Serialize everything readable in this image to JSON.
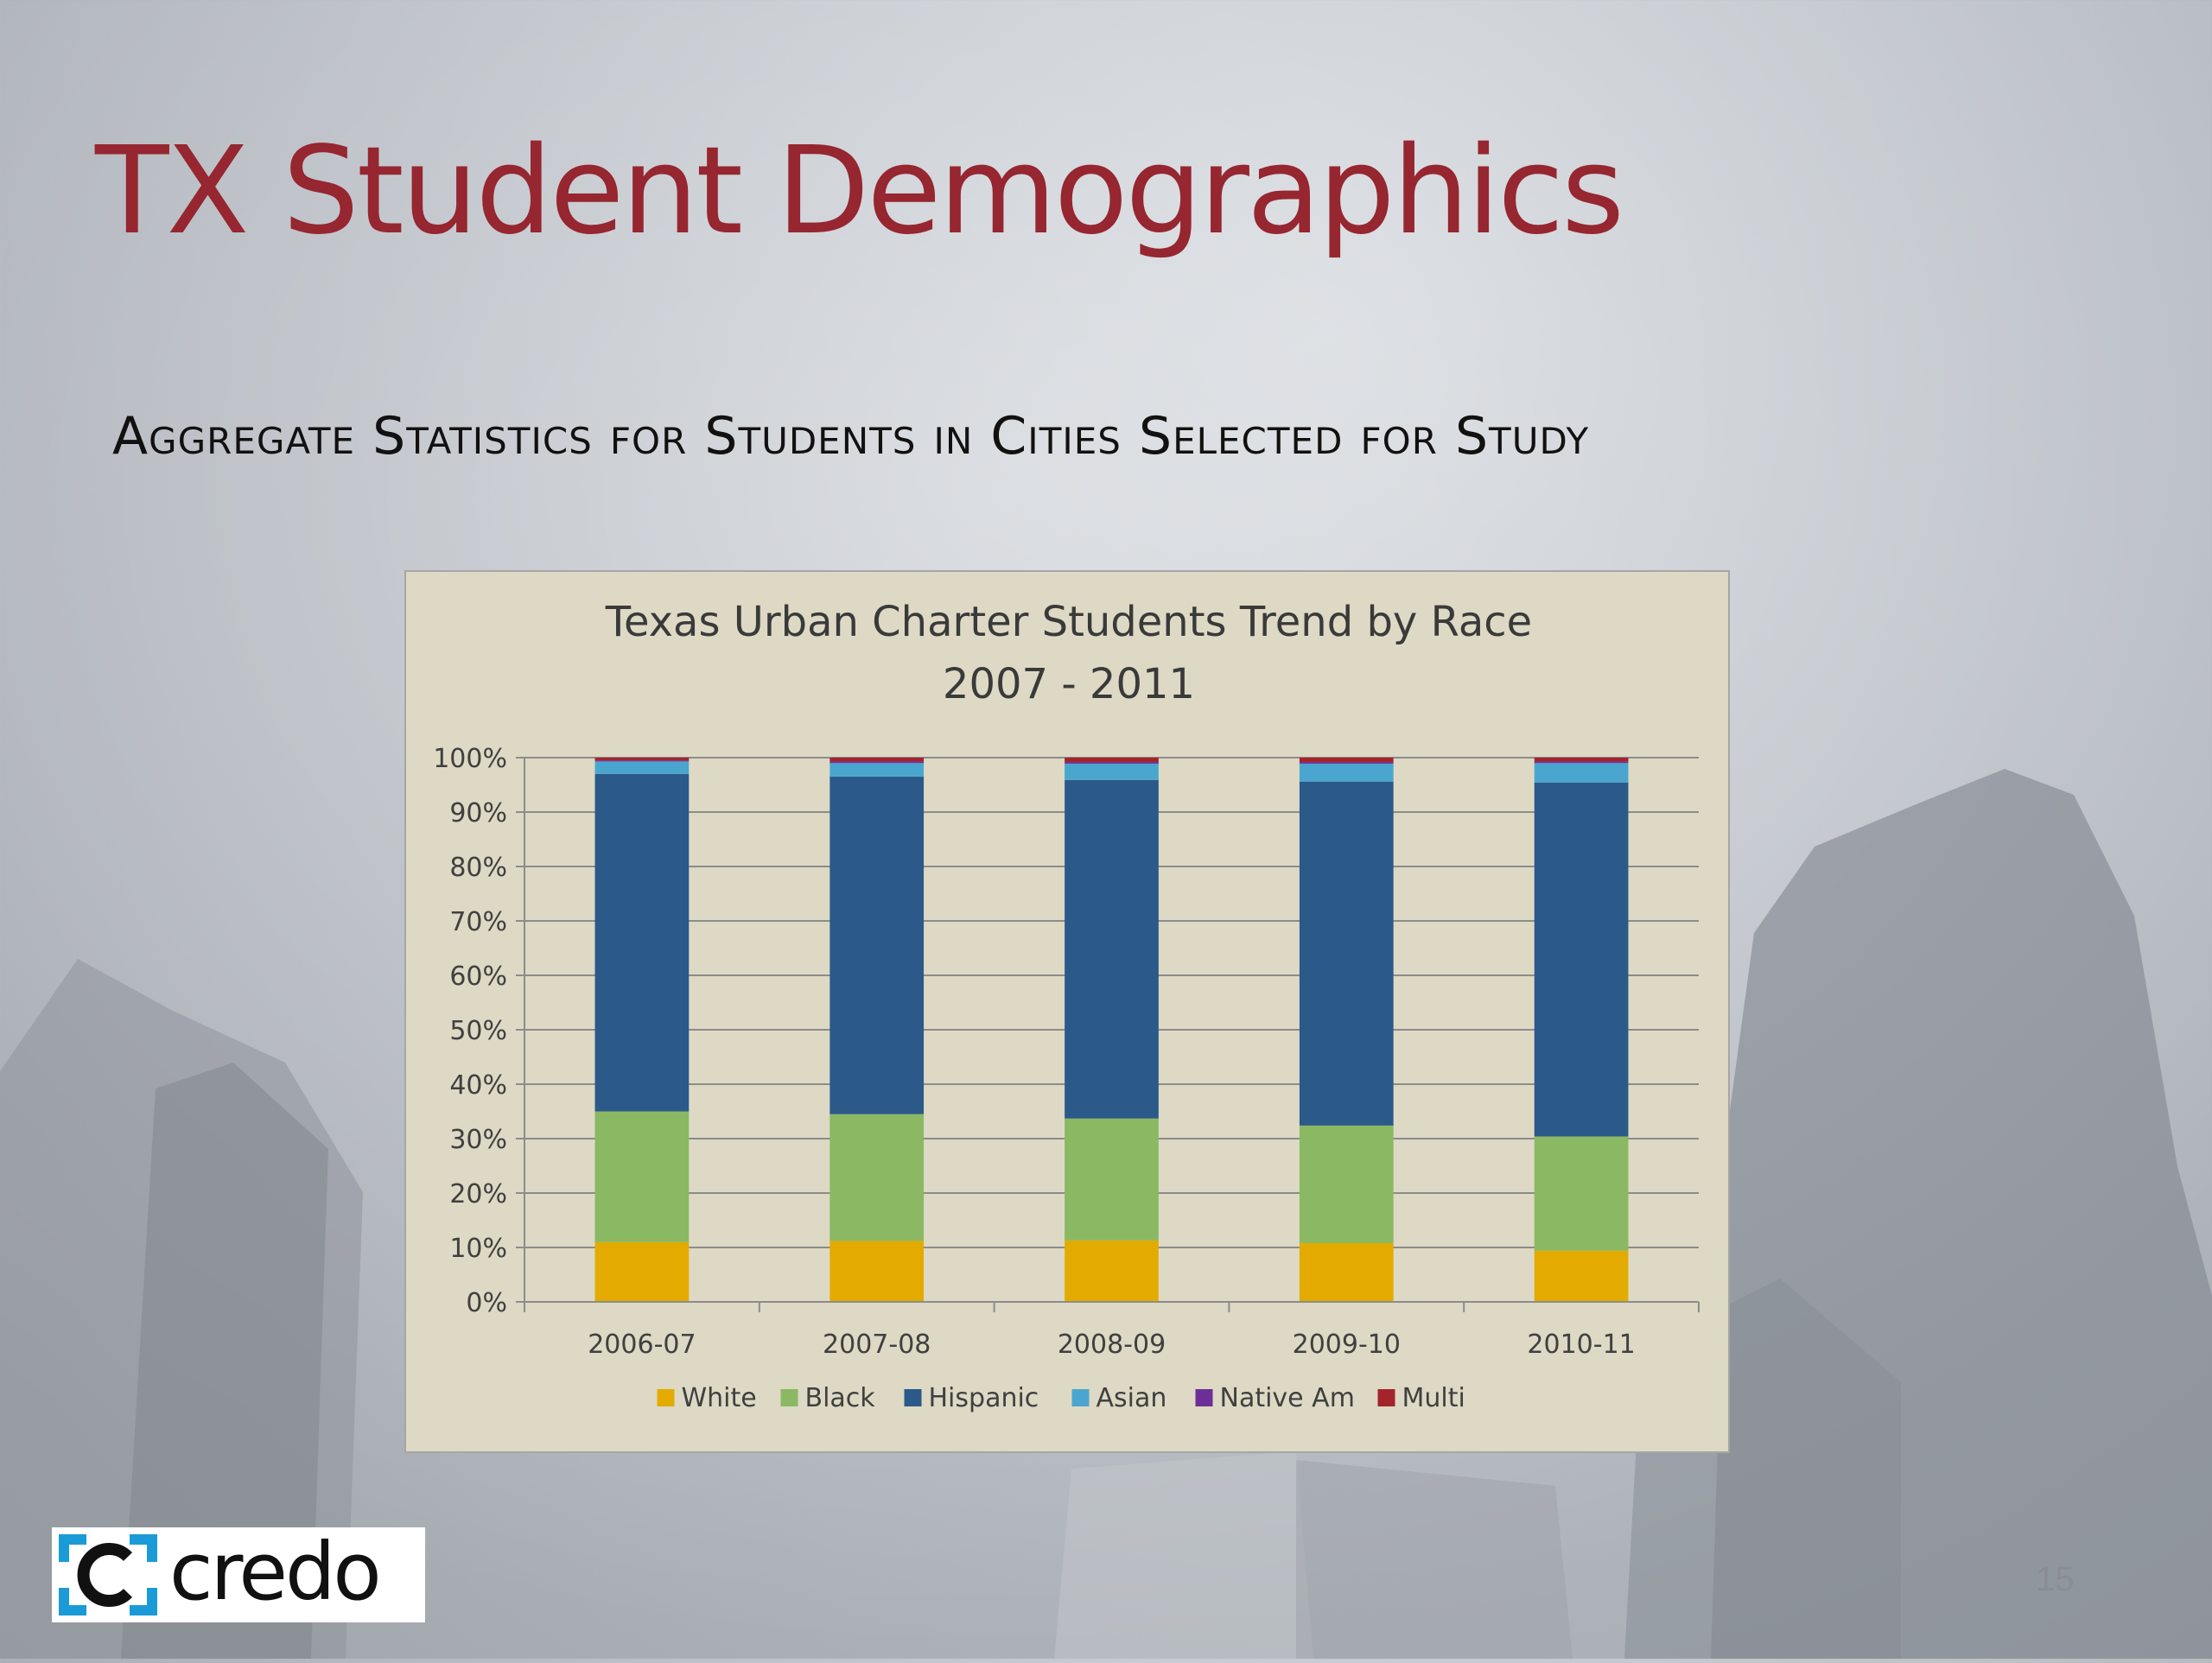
{
  "slide": {
    "title": "TX Student Demographics",
    "subtitle": "Aggregate Statistics for Students in Cities Selected for Study",
    "page_number": "15",
    "logo_text": "credo"
  },
  "colors": {
    "title": "#962630",
    "chart_background": "#ddd9c4",
    "White": "#e3ab00",
    "Black": "#8bb863",
    "Hispanic": "#2b5989",
    "Asian": "#4ba6cf",
    "Native Am": "#6c2f98",
    "Multi": "#a4242b",
    "logo_accent": "#1a9bd7"
  },
  "chart_data": {
    "type": "bar",
    "stacked": true,
    "percent_stacked": true,
    "title_lines": [
      "Texas Urban Charter Students Trend by Race",
      "2007 - 2011"
    ],
    "categories": [
      "2006-07",
      "2007-08",
      "2008-09",
      "2009-10",
      "2010-11"
    ],
    "series": [
      {
        "name": "White",
        "values": [
          11.0,
          11.2,
          11.3,
          10.8,
          9.4
        ]
      },
      {
        "name": "Black",
        "values": [
          24.0,
          23.3,
          22.4,
          21.6,
          21.0
        ]
      },
      {
        "name": "Hispanic",
        "values": [
          62.0,
          62.0,
          62.2,
          63.2,
          65.0
        ]
      },
      {
        "name": "Asian",
        "values": [
          2.3,
          2.5,
          3.0,
          3.3,
          3.6
        ]
      },
      {
        "name": "Native Am",
        "values": [
          0.2,
          0.3,
          0.3,
          0.3,
          0.3
        ]
      },
      {
        "name": "Multi",
        "values": [
          0.5,
          0.7,
          0.8,
          0.8,
          0.7
        ]
      }
    ],
    "ylim": [
      0,
      100
    ],
    "yticks": [
      0,
      10,
      20,
      30,
      40,
      50,
      60,
      70,
      80,
      90,
      100
    ],
    "ytick_labels": [
      "0%",
      "10%",
      "20%",
      "30%",
      "40%",
      "50%",
      "60%",
      "70%",
      "80%",
      "90%",
      "100%"
    ],
    "grid": true,
    "legend_position": "bottom"
  }
}
